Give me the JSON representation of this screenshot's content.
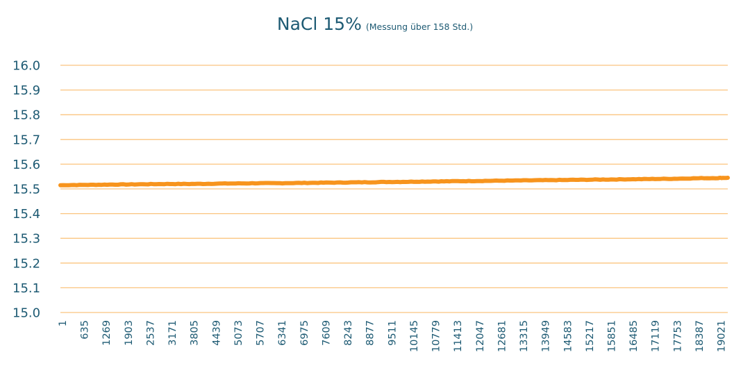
{
  "title": {
    "main": "NaCl 15%",
    "sub": "(Messung über 158 Std.)"
  },
  "colors": {
    "line": "#f7941d",
    "grid": "#fbc47f",
    "text": "#1d5a73",
    "background": "#ffffff"
  },
  "chart_data": {
    "type": "line",
    "title": "NaCl 15% (Messung über 158 Std.)",
    "xlabel": "",
    "ylabel": "",
    "ylim": [
      15.0,
      16.0
    ],
    "yticks": [
      "15.0",
      "15.1",
      "15.2",
      "15.3",
      "15.4",
      "15.5",
      "15.6",
      "15.7",
      "15.8",
      "15.9",
      "16.0"
    ],
    "grid": true,
    "legend": "none",
    "x_tick_labels": [
      "1",
      "635",
      "1269",
      "1903",
      "2537",
      "3171",
      "3805",
      "4439",
      "5073",
      "5707",
      "6341",
      "6975",
      "7609",
      "8243",
      "8877",
      "9511",
      "10145",
      "10779",
      "11413",
      "12047",
      "12681",
      "13315",
      "13949",
      "14583",
      "15217",
      "15851",
      "16485",
      "17119",
      "17753",
      "18387",
      "19021"
    ],
    "x_range": [
      1,
      19300
    ],
    "series": [
      {
        "name": "NaCl 15%",
        "x": [
          1,
          635,
          1269,
          1903,
          2537,
          3171,
          3805,
          4439,
          5073,
          5707,
          6341,
          6975,
          7609,
          8243,
          8877,
          9511,
          10145,
          10779,
          11413,
          12047,
          12681,
          13315,
          13949,
          14583,
          15217,
          15851,
          16485,
          17119,
          17753,
          18387,
          19021,
          19300
        ],
        "values": [
          15.515,
          15.516,
          15.517,
          15.518,
          15.519,
          15.52,
          15.52,
          15.521,
          15.522,
          15.523,
          15.523,
          15.524,
          15.525,
          15.526,
          15.527,
          15.528,
          15.529,
          15.53,
          15.531,
          15.532,
          15.533,
          15.534,
          15.535,
          15.536,
          15.537,
          15.538,
          15.539,
          15.54,
          15.541,
          15.543,
          15.544,
          15.545
        ]
      }
    ]
  }
}
